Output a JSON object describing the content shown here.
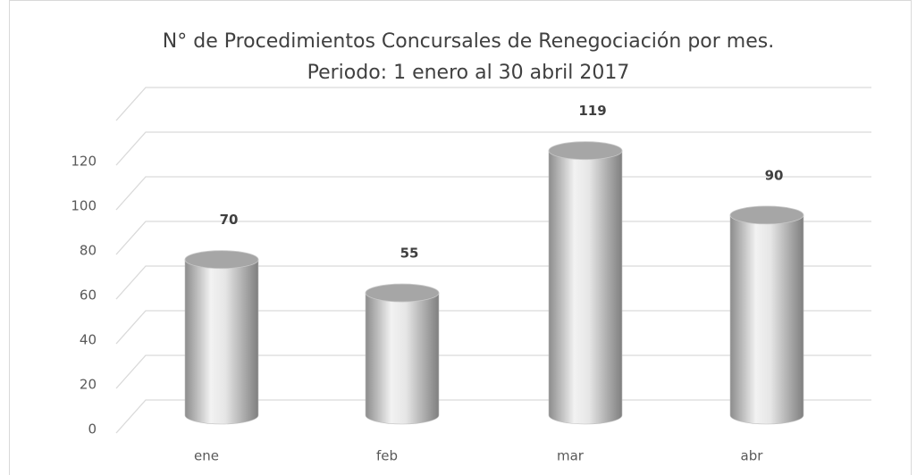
{
  "chart_data": {
    "type": "bar3d",
    "title": "N° de Procedimientos Concursales de Renegociación por mes.",
    "subtitle": "Periodo: 1 enero al 30 abril 2017",
    "categories": [
      "ene",
      "feb",
      "mar",
      "abr"
    ],
    "values": [
      70,
      55,
      119,
      90
    ],
    "ylim": [
      0,
      140
    ],
    "yticks": [
      0,
      20,
      40,
      60,
      80,
      100,
      120
    ],
    "grid": true
  }
}
